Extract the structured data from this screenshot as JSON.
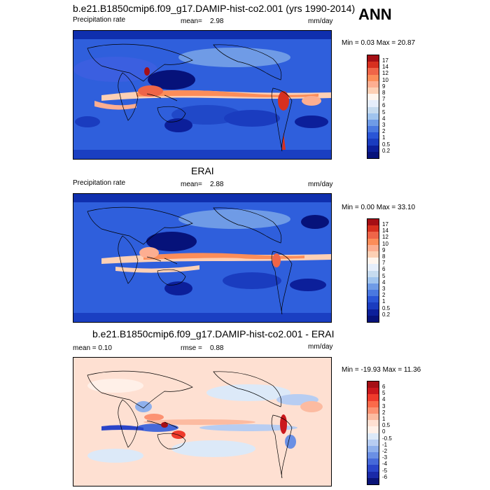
{
  "season": "ANN",
  "panels": [
    {
      "title": "b.e21.B1850cmip6.f09_g17.DAMIP-hist-co2.001 (yrs 1990-2014)",
      "left_label": "Precipitation rate",
      "stat_label": "mean=",
      "stat_value": "2.98",
      "units": "mm/day",
      "minmax": "Min =   0.03 Max =  20.87"
    },
    {
      "title": "ERAI",
      "left_label": "Precipitation rate",
      "stat_label": "mean=",
      "stat_value": "2.88",
      "units": "mm/day",
      "minmax": "Min =   0.00 Max =  33.10"
    },
    {
      "title": "b.e21.B1850cmip6.f09_g17.DAMIP-hist-co2.001 - ERAI",
      "left_label": "mean =   0.10",
      "stat_label": "rmse =",
      "stat_value": "0.88",
      "units": "mm/day",
      "minmax": "Min = -19.93 Max =  11.36"
    }
  ],
  "chart_data": [
    {
      "type": "heatmap",
      "title": "b.e21.B1850cmip6.f09_g17.DAMIP-hist-co2.001 (yrs 1990-2014)",
      "variable": "Precipitation rate",
      "units": "mm/day",
      "mean": 2.98,
      "min": 0.03,
      "max": 20.87,
      "colorbar_levels": [
        "17",
        "14",
        "12",
        "10",
        "9",
        "8",
        "7",
        "6",
        "5",
        "4",
        "3",
        "2",
        "1",
        "0.5",
        "0.2"
      ],
      "colorbar_colors": [
        "#a50f15",
        "#d7301f",
        "#ef6548",
        "#fc8d59",
        "#fdae91",
        "#fdd0b5",
        "#fff5ee",
        "#e6eefb",
        "#c6dbef",
        "#a0c4ee",
        "#6f9be6",
        "#4a78e0",
        "#2a55d6",
        "#1a3cbf",
        "#0c1f9a",
        "#06127a"
      ]
    },
    {
      "type": "heatmap",
      "title": "ERAI",
      "variable": "Precipitation rate",
      "units": "mm/day",
      "mean": 2.88,
      "min": 0.0,
      "max": 33.1,
      "colorbar_levels": [
        "17",
        "14",
        "12",
        "10",
        "9",
        "8",
        "7",
        "6",
        "5",
        "4",
        "3",
        "2",
        "1",
        "0.5",
        "0.2"
      ],
      "colorbar_colors": [
        "#a50f15",
        "#d7301f",
        "#ef6548",
        "#fc8d59",
        "#fdae91",
        "#fdd0b5",
        "#fff5ee",
        "#e6eefb",
        "#c6dbef",
        "#a0c4ee",
        "#6f9be6",
        "#4a78e0",
        "#2a55d6",
        "#1a3cbf",
        "#0c1f9a",
        "#06127a"
      ]
    },
    {
      "type": "heatmap",
      "title": "b.e21.B1850cmip6.f09_g17.DAMIP-hist-co2.001 - ERAI",
      "units": "mm/day",
      "mean": 0.1,
      "rmse": 0.88,
      "min": -19.93,
      "max": 11.36,
      "colorbar_levels": [
        "6",
        "5",
        "4",
        "3",
        "2",
        "1",
        "0.5",
        "0",
        "-0.5",
        "-1",
        "-2",
        "-3",
        "-4",
        "-5",
        "-6"
      ],
      "colorbar_colors": [
        "#a50f15",
        "#cb181d",
        "#ef3b2c",
        "#fb6a4a",
        "#fc9272",
        "#fcbba1",
        "#fee0d2",
        "#fff0e8",
        "#dce9f8",
        "#b7cdf2",
        "#8fb0ec",
        "#6a8fe4",
        "#4669d9",
        "#2a45c9",
        "#1a2aa8",
        "#0a1478"
      ]
    }
  ]
}
